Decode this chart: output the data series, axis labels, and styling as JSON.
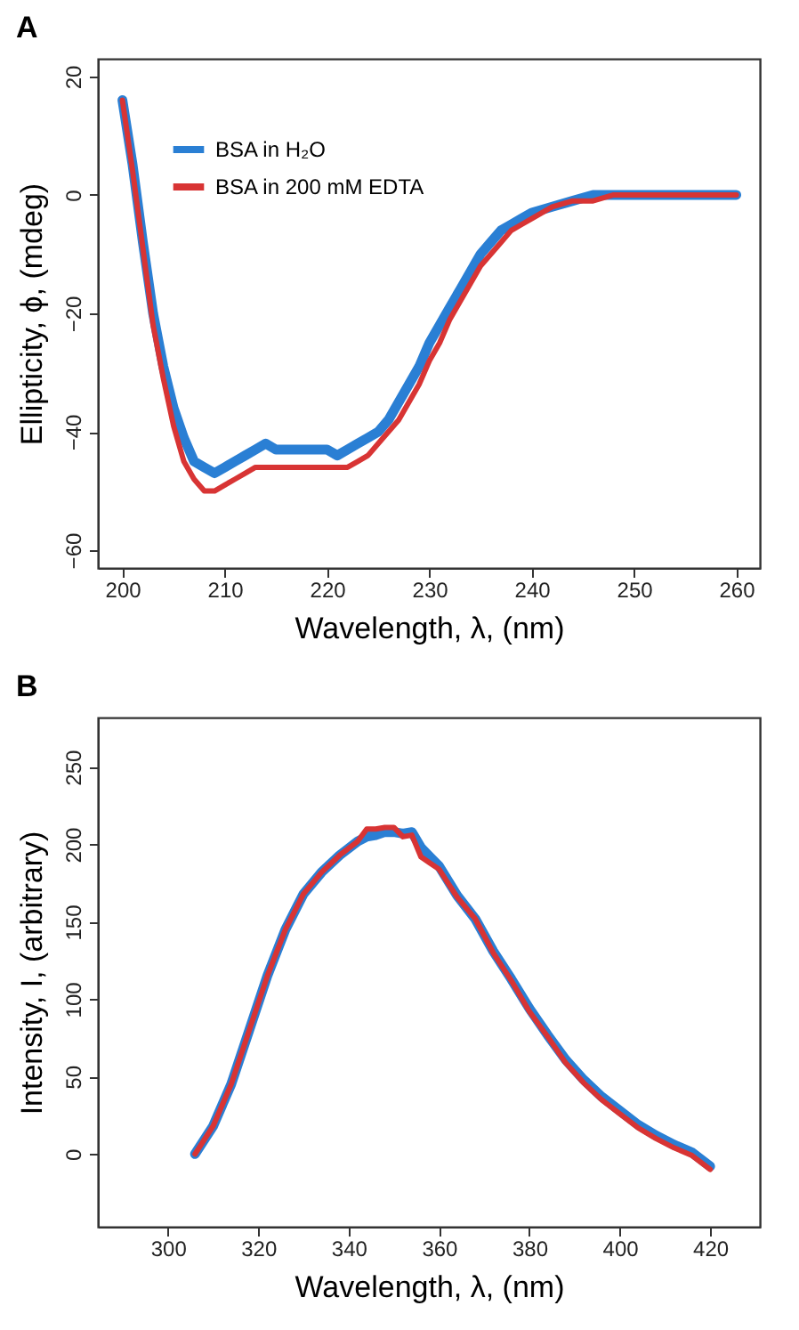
{
  "chart_data": [
    {
      "type": "line",
      "title": "A",
      "xlabel": "Wavelength,  λ, (nm)",
      "ylabel": "Ellipticity,  ϕ, (mdeg)",
      "xlim": [
        197.6,
        262.3
      ],
      "xticks": [
        200,
        210,
        220,
        230,
        240,
        250,
        260
      ],
      "ylim": [
        -63,
        23
      ],
      "yticks": [
        -60,
        -40,
        -20,
        0,
        20
      ],
      "grid": false,
      "legend": "top left",
      "line_style": "solid",
      "x": [
        200,
        201,
        202,
        203,
        204,
        205,
        206,
        207,
        208,
        209,
        210,
        211,
        212,
        213,
        214,
        215,
        216,
        217,
        218,
        219,
        220,
        221,
        222,
        223,
        224,
        225,
        226,
        227,
        228,
        229,
        230,
        231,
        232,
        233,
        234,
        235,
        236,
        237,
        238,
        239,
        240,
        242,
        244,
        246,
        248,
        250,
        252,
        254,
        256,
        258,
        260
      ],
      "series": [
        {
          "name": "BSA in H₂O",
          "color": "#2a7fd4",
          "values": [
            16,
            5,
            -8,
            -20,
            -29,
            -36,
            -41,
            -45,
            -46,
            -47,
            -46,
            -45,
            -44,
            -43,
            -42,
            -43,
            -43,
            -43,
            -43,
            -43,
            -43,
            -44,
            -43,
            -42,
            -41,
            -40,
            -38,
            -35,
            -32,
            -29,
            -25,
            -22,
            -19,
            -16,
            -13,
            -10,
            -8,
            -6,
            -5,
            -4,
            -3,
            -2,
            -1,
            0,
            0,
            0,
            0,
            0,
            0,
            0,
            0
          ]
        },
        {
          "name": "BSA in 200 mM EDTA",
          "color": "#d83434",
          "values": [
            16,
            4,
            -9,
            -22,
            -31,
            -39,
            -45,
            -48,
            -50,
            -50,
            -49,
            -48,
            -47,
            -46,
            -46,
            -46,
            -46,
            -46,
            -46,
            -46,
            -46,
            -46,
            -46,
            -45,
            -44,
            -42,
            -40,
            -38,
            -35,
            -32,
            -28,
            -25,
            -21,
            -18,
            -15,
            -12,
            -10,
            -8,
            -6,
            -5,
            -4,
            -2,
            -1,
            -1,
            0,
            0,
            0,
            0,
            0,
            0,
            0
          ]
        }
      ]
    },
    {
      "type": "line",
      "title": "B",
      "xlabel": "Wavelength,  λ, (nm)",
      "ylabel": "Intensity,  I, (arbitrary)",
      "xlim": [
        284.5,
        431
      ],
      "xticks": [
        300,
        320,
        340,
        360,
        380,
        400,
        420
      ],
      "ylim": [
        -47,
        282
      ],
      "yticks": [
        0,
        50,
        100,
        150,
        200,
        250
      ],
      "grid": false,
      "legend": "top left",
      "line_style": "solid",
      "x": [
        306,
        310,
        314,
        318,
        322,
        326,
        330,
        334,
        338,
        342,
        344,
        346,
        348,
        350,
        352,
        354,
        356,
        358,
        360,
        364,
        368,
        372,
        376,
        380,
        384,
        388,
        392,
        396,
        400,
        404,
        408,
        412,
        416,
        420
      ],
      "series": [
        {
          "name": "BSA in H₂O",
          "color": "#2a7fd4",
          "values": [
            0,
            18,
            45,
            80,
            115,
            145,
            168,
            182,
            193,
            202,
            205,
            206,
            208,
            208,
            207,
            208,
            198,
            192,
            186,
            167,
            152,
            131,
            113,
            94,
            77,
            61,
            48,
            37,
            28,
            19,
            12,
            6,
            1,
            -8
          ]
        },
        {
          "name": "BSA in 200 mM EDTA",
          "color": "#d83434",
          "values": [
            0,
            18,
            45,
            80,
            115,
            145,
            168,
            182,
            193,
            202,
            210,
            210,
            211,
            211,
            205,
            206,
            192,
            188,
            184,
            166,
            152,
            130,
            112,
            92,
            76,
            59,
            46,
            35,
            26,
            17,
            10,
            4,
            -1,
            -10
          ]
        }
      ]
    }
  ]
}
